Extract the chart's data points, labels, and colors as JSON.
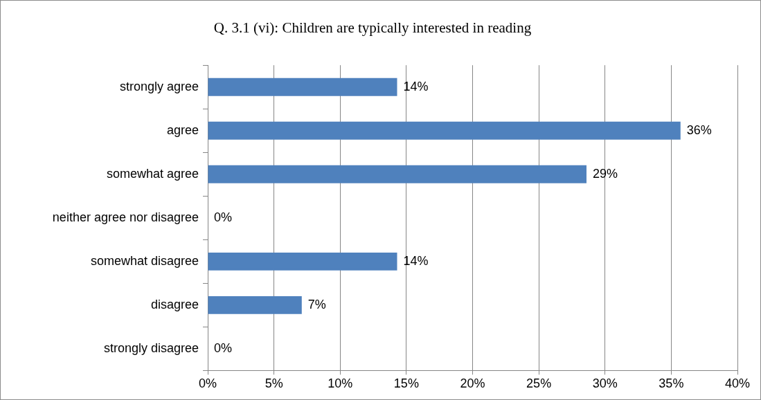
{
  "chart_data": {
    "type": "bar",
    "orientation": "horizontal",
    "title": "Q. 3.1 (vi): Children are typically interested in reading",
    "categories": [
      "strongly agree",
      "agree",
      "somewhat agree",
      "neither agree nor disagree",
      "somewhat disagree",
      "disagree",
      "strongly disagree"
    ],
    "values": [
      14.3,
      35.7,
      28.6,
      0,
      14.3,
      7.1,
      0
    ],
    "value_labels": [
      "14%",
      "36%",
      "29%",
      "0%",
      "14%",
      "7%",
      "0%"
    ],
    "color": "#4f81bd",
    "xlim": [
      0,
      40
    ],
    "xticks": [
      {
        "value": 0,
        "label": "0%"
      },
      {
        "value": 5,
        "label": "5%"
      },
      {
        "value": 10,
        "label": "10%"
      },
      {
        "value": 15,
        "label": "15%"
      },
      {
        "value": 20,
        "label": "20%"
      },
      {
        "value": 25,
        "label": "25%"
      },
      {
        "value": 30,
        "label": "30%"
      },
      {
        "value": 35,
        "label": "35%"
      },
      {
        "value": 40,
        "label": "40%"
      }
    ],
    "grid": "x",
    "legend": false
  }
}
